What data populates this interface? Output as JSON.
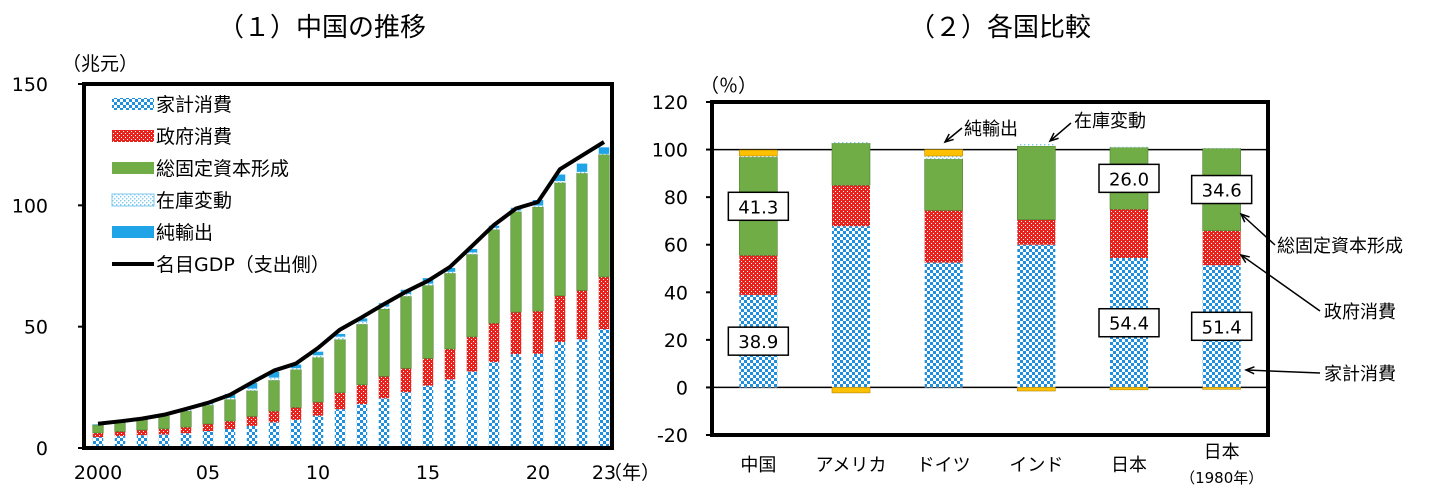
{
  "chart_data": [
    {
      "type": "bar",
      "stacked": true,
      "title": "（１）中国の推移",
      "ylabel": "（兆元）",
      "xlabel": "（年）",
      "ylim": [
        0,
        150
      ],
      "yticks": [
        "0",
        "50",
        "100",
        "150"
      ],
      "years": [
        2000,
        2001,
        2002,
        2003,
        2004,
        2005,
        2006,
        2007,
        2008,
        2009,
        2010,
        2011,
        2012,
        2013,
        2014,
        2015,
        2016,
        2017,
        2018,
        2019,
        2020,
        2021,
        2022,
        2023
      ],
      "xtick_labels": [
        {
          "year": 2000,
          "label": "2000"
        },
        {
          "year": 2005,
          "label": "05"
        },
        {
          "year": 2010,
          "label": "10"
        },
        {
          "year": 2015,
          "label": "15"
        },
        {
          "year": 2020,
          "label": "20"
        },
        {
          "year": 2023,
          "label": "23"
        }
      ],
      "series": [
        {
          "name": "家計消費",
          "color": "#1f8fe0",
          "pattern": "checker",
          "values": [
            4.5,
            4.9,
            5.3,
            5.6,
            6.1,
            7.0,
            7.8,
            9.1,
            10.6,
            11.6,
            13.3,
            16.0,
            18.1,
            20.5,
            23.0,
            25.7,
            28.3,
            31.5,
            35.4,
            38.7,
            38.8,
            43.7,
            44.8,
            49.0
          ]
        },
        {
          "name": "政府消費",
          "color": "#e8231d",
          "pattern": "dots",
          "values": [
            1.7,
            1.9,
            2.1,
            2.3,
            2.5,
            2.9,
            3.3,
            3.9,
            4.6,
            5.1,
            5.6,
            6.8,
            8.0,
            9.0,
            9.8,
            11.2,
            12.5,
            14.3,
            16.0,
            17.3,
            17.6,
            19.0,
            20.1,
            21.5
          ]
        },
        {
          "name": "総固定資本形成",
          "color": "#70ad47",
          "pattern": "solid",
          "values": [
            3.3,
            3.7,
            4.3,
            5.4,
            6.6,
            7.7,
            8.9,
            10.6,
            12.7,
            15.6,
            18.4,
            21.9,
            24.9,
            27.8,
            29.7,
            30.1,
            31.2,
            34.0,
            38.6,
            41.4,
            42.9,
            46.6,
            48.3,
            50.4
          ]
        },
        {
          "name": "在庫変動",
          "color": "#bfe3f5",
          "pattern": "fine-dots",
          "values": [
            0.1,
            0.3,
            0.2,
            0.4,
            0.7,
            0.4,
            0.6,
            0.9,
            1.1,
            0.6,
            0.9,
            1.2,
            1.1,
            1.0,
            1.0,
            0.7,
            0.6,
            0.8,
            0.7,
            0.5,
            0.6,
            0.7,
            0.6,
            0.3
          ]
        },
        {
          "name": "純輸出",
          "color": "#1fa4e8",
          "pattern": "solid",
          "values": [
            0.2,
            0.2,
            0.3,
            0.2,
            0.4,
            1.0,
            1.7,
            2.3,
            2.4,
            1.5,
            1.5,
            1.1,
            1.3,
            1.4,
            1.7,
            2.3,
            1.6,
            1.4,
            0.9,
            1.1,
            2.3,
            2.7,
            3.4,
            2.7
          ]
        }
      ],
      "line": {
        "name": "名目GDP（支出側）",
        "color": "#000000",
        "values": [
          10.0,
          11.0,
          12.1,
          13.7,
          16.1,
          18.6,
          21.9,
          27.0,
          31.9,
          34.8,
          41.2,
          48.8,
          53.9,
          59.3,
          64.4,
          68.9,
          74.6,
          83.2,
          91.9,
          98.7,
          101.4,
          114.9,
          120.5,
          126.1
        ]
      }
    },
    {
      "type": "bar",
      "stacked": true,
      "title": "（２）各国比較",
      "ylabel": "（％）",
      "ylim": [
        -20,
        120
      ],
      "yticks": [
        "-20",
        "0",
        "20",
        "40",
        "60",
        "80",
        "100",
        "120"
      ],
      "categories": [
        "中国",
        "アメリカ",
        "ドイツ",
        "インド",
        "日本",
        "日本"
      ],
      "category_sublabels": [
        "",
        "",
        "",
        "",
        "",
        "（1980年）"
      ],
      "series": [
        {
          "name": "家計消費",
          "color": "#1f8fe0",
          "pattern": "checker",
          "values": [
            38.9,
            67.8,
            52.5,
            60.0,
            54.4,
            51.4
          ]
        },
        {
          "name": "政府消費",
          "color": "#e8231d",
          "pattern": "dots",
          "values": [
            16.6,
            17.2,
            21.9,
            10.5,
            20.5,
            14.5
          ]
        },
        {
          "name": "総固定資本形成",
          "color": "#70ad47",
          "pattern": "solid",
          "values": [
            41.3,
            17.7,
            21.6,
            31.0,
            26.0,
            34.6
          ]
        },
        {
          "name": "在庫変動",
          "color": "#bfe3f5",
          "pattern": "fine-dots",
          "values": [
            0.5,
            0.5,
            1.3,
            1.0,
            0.3,
            0.3
          ]
        },
        {
          "name": "純輸出",
          "color": "#ffc000",
          "pattern": "solid",
          "values": [
            2.5,
            -2.3,
            2.7,
            -1.5,
            -1.0,
            -0.8
          ]
        }
      ],
      "data_labels": [
        {
          "category_index": 0,
          "series": "総固定資本形成",
          "text": "41.3"
        },
        {
          "category_index": 0,
          "series": "家計消費",
          "text": "38.9"
        },
        {
          "category_index": 4,
          "series": "総固定資本形成",
          "text": "26.0"
        },
        {
          "category_index": 4,
          "series": "家計消費",
          "text": "54.4"
        },
        {
          "category_index": 5,
          "series": "総固定資本形成",
          "text": "34.6"
        },
        {
          "category_index": 5,
          "series": "家計消費",
          "text": "51.4"
        }
      ],
      "annotations": [
        "純輸出",
        "在庫変動",
        "総固定資本形成",
        "政府消費",
        "家計消費"
      ],
      "grid": "y=0 and y=100 lines"
    }
  ]
}
